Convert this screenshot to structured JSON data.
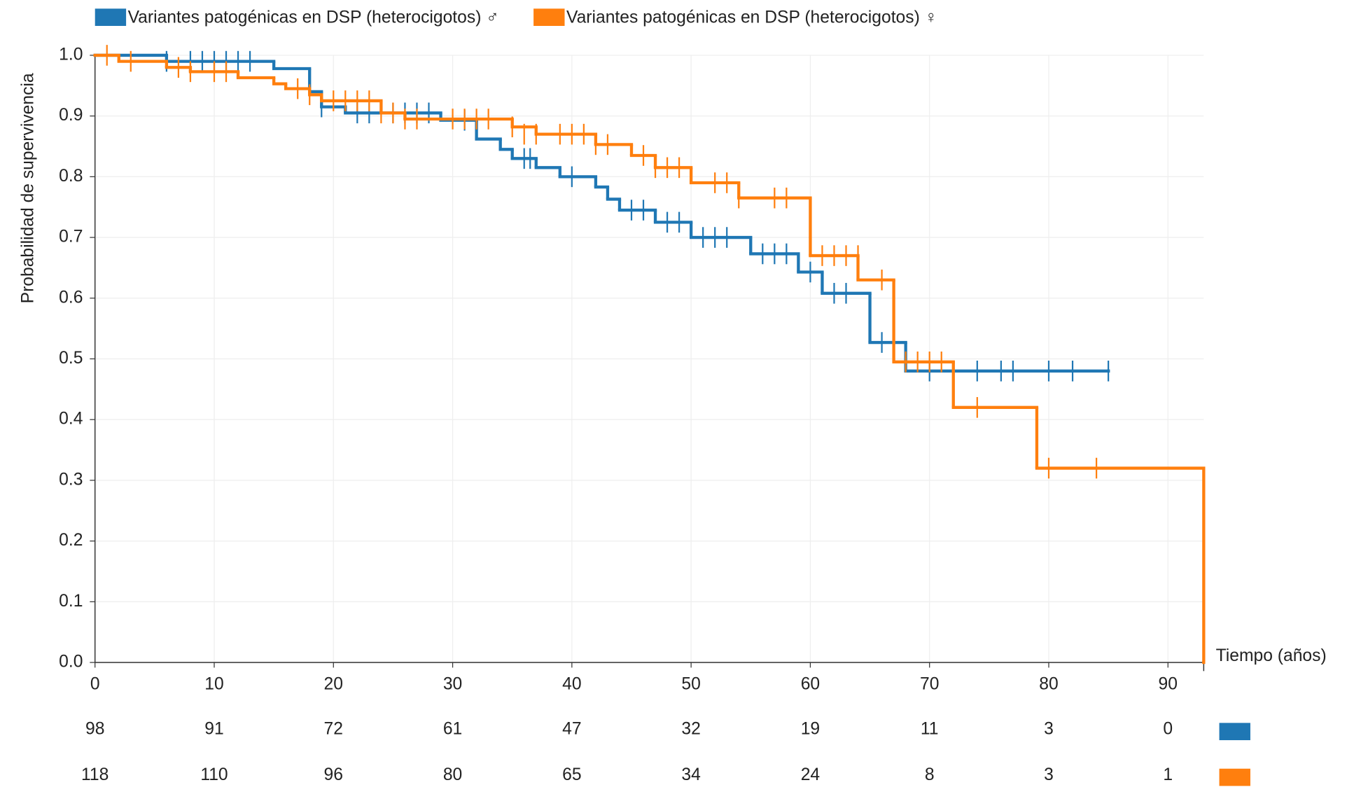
{
  "chart_data": {
    "type": "km",
    "x_label": "Tiempo (años)",
    "y_label": "Probabilidad de supervivencia",
    "xlim": [
      0,
      93
    ],
    "ylim": [
      0,
      1
    ],
    "xticks": [
      0,
      10,
      20,
      30,
      40,
      50,
      60,
      70,
      80,
      90
    ],
    "yticks": [
      {
        "value": 0,
        "label": "0.0"
      },
      0.1,
      0.2,
      0.3,
      0.4,
      0.5,
      0.6,
      0.7,
      0.8,
      0.9,
      {
        "value": 1,
        "label": "1.0"
      }
    ],
    "grid": true,
    "series": [
      {
        "name": "Variantes patogénicas en DSP (heterocigotos) ♂",
        "color": "#1f77b4",
        "x": [
          0,
          6,
          15,
          18,
          19,
          21,
          29,
          32,
          34,
          35,
          37,
          39,
          42,
          43,
          44,
          47,
          50,
          55,
          59,
          61,
          65,
          68,
          85
        ],
        "values": [
          1.0,
          0.99,
          0.978,
          0.94,
          0.915,
          0.905,
          0.893,
          0.862,
          0.845,
          0.83,
          0.815,
          0.8,
          0.783,
          0.763,
          0.745,
          0.725,
          0.7,
          0.673,
          0.643,
          0.608,
          0.527,
          0.48,
          0.48
        ],
        "censored_x": [
          6,
          8,
          9,
          10,
          11,
          12,
          13,
          19,
          22,
          23,
          25,
          26,
          27,
          28,
          31,
          36,
          36.5,
          40,
          45,
          46,
          48,
          49,
          51,
          52,
          53,
          56,
          57,
          58,
          60,
          62,
          63,
          66,
          70,
          72,
          74,
          76,
          77,
          80,
          82,
          85
        ],
        "censored_y": [
          0.99,
          0.99,
          0.99,
          0.99,
          0.99,
          0.99,
          0.99,
          0.915,
          0.905,
          0.905,
          0.905,
          0.905,
          0.905,
          0.905,
          0.893,
          0.83,
          0.83,
          0.8,
          0.745,
          0.745,
          0.725,
          0.725,
          0.7,
          0.7,
          0.7,
          0.673,
          0.673,
          0.673,
          0.643,
          0.608,
          0.608,
          0.527,
          0.48,
          0.48,
          0.48,
          0.48,
          0.48,
          0.48,
          0.48,
          0.48
        ],
        "at_risk": [
          98,
          91,
          72,
          61,
          47,
          32,
          19,
          11,
          3,
          0
        ]
      },
      {
        "name": "Variantes patogénicas en DSP (heterocigotos) ♀",
        "color": "#ff7f0e",
        "x": [
          0,
          2,
          6,
          8,
          12,
          15,
          16,
          18,
          19,
          24,
          26,
          35,
          37,
          42,
          45,
          47,
          50,
          54,
          60,
          64,
          67,
          72,
          79,
          93
        ],
        "values": [
          1.0,
          0.99,
          0.98,
          0.973,
          0.963,
          0.953,
          0.945,
          0.935,
          0.925,
          0.905,
          0.895,
          0.882,
          0.87,
          0.853,
          0.835,
          0.815,
          0.79,
          0.765,
          0.67,
          0.63,
          0.495,
          0.42,
          0.32,
          0.0
        ],
        "censored_x": [
          1,
          3,
          7,
          8,
          10,
          11,
          17,
          18,
          20,
          21,
          22,
          23,
          24,
          25,
          26,
          27,
          30,
          31,
          32,
          33,
          35,
          36,
          37,
          39,
          40,
          41,
          42,
          43,
          46,
          47,
          48,
          49,
          52,
          53,
          54,
          57,
          58,
          61,
          62,
          63,
          64,
          66,
          68,
          69,
          70,
          71,
          74,
          80,
          84
        ],
        "censored_y": [
          1.0,
          0.99,
          0.98,
          0.973,
          0.973,
          0.973,
          0.945,
          0.935,
          0.925,
          0.925,
          0.925,
          0.925,
          0.905,
          0.905,
          0.895,
          0.895,
          0.895,
          0.895,
          0.895,
          0.895,
          0.882,
          0.87,
          0.87,
          0.87,
          0.87,
          0.87,
          0.853,
          0.853,
          0.835,
          0.815,
          0.815,
          0.815,
          0.79,
          0.79,
          0.765,
          0.765,
          0.765,
          0.67,
          0.67,
          0.67,
          0.67,
          0.63,
          0.495,
          0.495,
          0.495,
          0.495,
          0.42,
          0.32,
          0.32
        ],
        "at_risk": [
          118,
          110,
          96,
          80,
          65,
          34,
          24,
          8,
          3,
          1
        ]
      }
    ]
  }
}
